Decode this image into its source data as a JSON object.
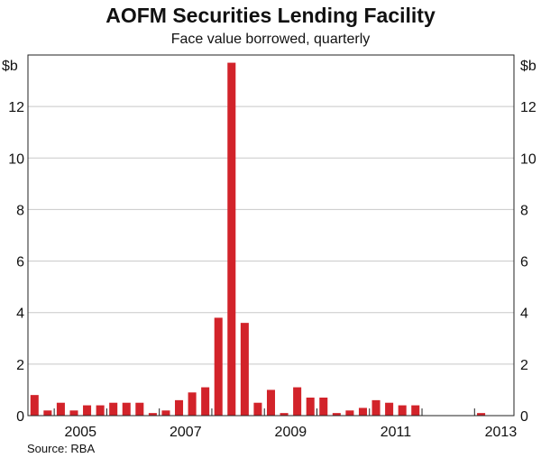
{
  "chart_data": {
    "type": "bar",
    "title": "AOFM Securities Lending Facility",
    "subtitle": "Face value borrowed, quarterly",
    "unit_left": "$b",
    "unit_right": "$b",
    "source": "Source: RBA",
    "ylim": [
      0,
      14
    ],
    "yticks": [
      0,
      2,
      4,
      6,
      8,
      10,
      12
    ],
    "ytick_labels": [
      "0",
      "2",
      "4",
      "6",
      "8",
      "10",
      "12"
    ],
    "xlim": [
      2004.5,
      2013.75
    ],
    "xtick_labels": [
      {
        "year": 2005,
        "label": "2005"
      },
      {
        "year": 2007,
        "label": "2007"
      },
      {
        "year": 2009,
        "label": "2009"
      },
      {
        "year": 2011,
        "label": "2011"
      },
      {
        "year": 2013,
        "label": "2013"
      }
    ],
    "year_ticks": [
      2005,
      2006,
      2007,
      2008,
      2009,
      2010,
      2011,
      2012,
      2013
    ],
    "bar_color": "#d2232a",
    "categories": [
      "2004-Q3",
      "2004-Q4",
      "2005-Q1",
      "2005-Q2",
      "2005-Q3",
      "2005-Q4",
      "2006-Q1",
      "2006-Q2",
      "2006-Q3",
      "2006-Q4",
      "2007-Q1",
      "2007-Q2",
      "2007-Q3",
      "2007-Q4",
      "2008-Q1",
      "2008-Q2",
      "2008-Q3",
      "2008-Q4",
      "2009-Q1",
      "2009-Q2",
      "2009-Q3",
      "2009-Q4",
      "2010-Q1",
      "2010-Q2",
      "2010-Q3",
      "2010-Q4",
      "2011-Q1",
      "2011-Q2",
      "2011-Q3",
      "2011-Q4",
      "2012-Q1",
      "2012-Q2",
      "2012-Q3",
      "2012-Q4",
      "2013-Q1",
      "2013-Q2"
    ],
    "values": [
      0.8,
      0.2,
      0.5,
      0.2,
      0.4,
      0.4,
      0.5,
      0.5,
      0.5,
      0.1,
      0.2,
      0.6,
      0.9,
      1.1,
      3.8,
      13.7,
      3.6,
      0.5,
      1.0,
      0.1,
      1.1,
      0.7,
      0.7,
      0.1,
      0.2,
      0.3,
      0.6,
      0.5,
      0.4,
      0.4,
      0.0,
      0.0,
      0.0,
      0.0,
      0.1,
      0.0
    ]
  }
}
